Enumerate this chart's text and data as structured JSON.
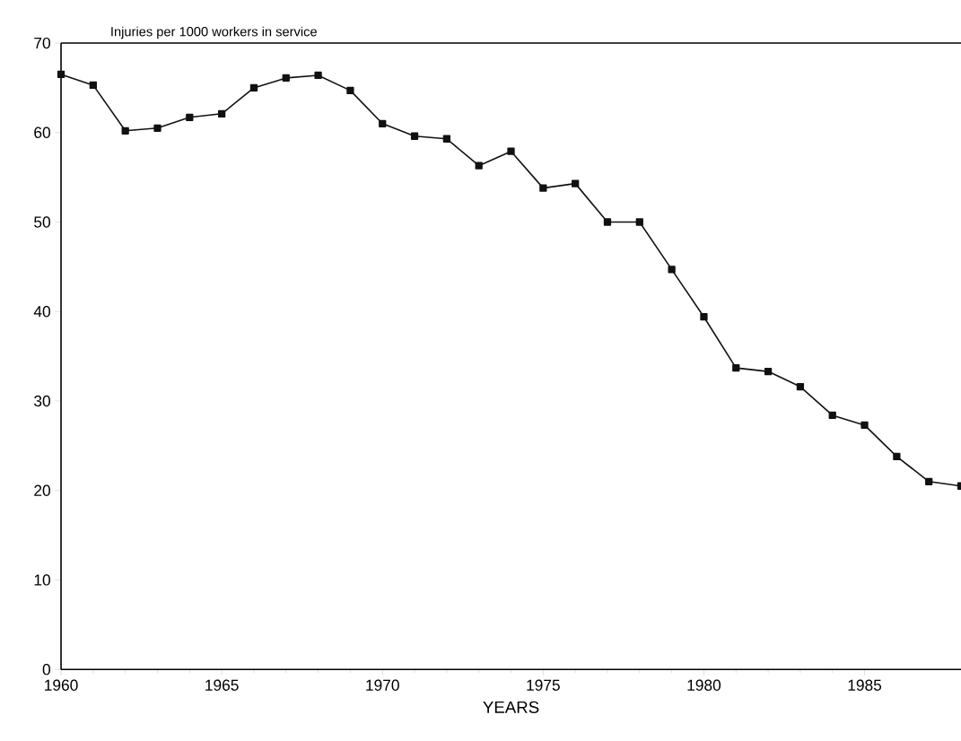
{
  "chart_data": {
    "type": "line",
    "ylabel": "Injuries per 1000 workers in service",
    "xlabel": "YEARS",
    "x": [
      1960,
      1961,
      1962,
      1963,
      1964,
      1965,
      1966,
      1967,
      1968,
      1969,
      1970,
      1971,
      1972,
      1973,
      1974,
      1975,
      1976,
      1977,
      1978,
      1979,
      1980,
      1981,
      1982,
      1983,
      1984,
      1985,
      1986,
      1987,
      1988
    ],
    "values": [
      66.5,
      65.3,
      60.2,
      60.5,
      61.7,
      62.1,
      65.0,
      66.1,
      66.4,
      64.7,
      61.0,
      59.6,
      59.3,
      56.3,
      57.9,
      53.8,
      54.3,
      50.0,
      50.0,
      44.7,
      39.4,
      33.7,
      33.3,
      31.6,
      28.4,
      27.3,
      23.8,
      21.0,
      20.5
    ],
    "color": "#111111",
    "marker": "square",
    "line_style": "solid",
    "xlim": [
      1960,
      1988
    ],
    "xticks": [
      1960,
      1965,
      1970,
      1975,
      1980,
      1985
    ],
    "ylim": [
      0,
      70
    ],
    "yticks": [
      0,
      10,
      20,
      30,
      40,
      50,
      60,
      70
    ]
  }
}
